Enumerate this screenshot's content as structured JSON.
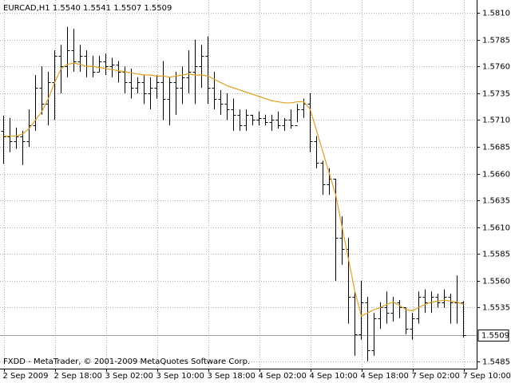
{
  "chart_data": {
    "type": "ohlc",
    "header": "EURCAD,H1  1.5540 1.5541 1.5507 1.5509",
    "footer": "FXDD - MetaTrader, © 2001-2009 MetaQuotes Software Corp.",
    "categories": [
      "2 Sep 2009",
      null,
      null,
      null,
      null,
      null,
      null,
      null,
      "2 Sep 18:00",
      null,
      null,
      null,
      null,
      null,
      null,
      null,
      "3 Sep 02:00",
      null,
      null,
      null,
      null,
      null,
      null,
      null,
      "3 Sep 10:00",
      null,
      null,
      null,
      null,
      null,
      null,
      null,
      "3 Sep 18:00",
      null,
      null,
      null,
      null,
      null,
      null,
      null,
      "4 Sep 02:00",
      null,
      null,
      null,
      null,
      null,
      null,
      null,
      "4 Sep 10:00",
      null,
      null,
      null,
      null,
      null,
      null,
      null,
      "4 Sep 18:00",
      null,
      null,
      null,
      null,
      null,
      null,
      null,
      "7 Sep 02:00",
      null,
      null,
      null,
      null,
      null,
      null,
      null,
      "7 Sep 10:00"
    ],
    "open": [
      1.57,
      1.5695,
      1.569,
      1.5695,
      1.569,
      1.5705,
      1.574,
      1.5725,
      1.5745,
      1.577,
      1.576,
      1.5775,
      1.5765,
      1.577,
      1.576,
      1.5755,
      1.5765,
      1.576,
      1.5762,
      1.5755,
      1.5745,
      1.574,
      1.5745,
      1.5735,
      1.574,
      1.5745,
      1.573,
      1.5745,
      1.574,
      1.575,
      1.5755,
      1.576,
      1.577,
      1.574,
      1.573,
      1.5725,
      1.572,
      1.5715,
      1.5705,
      1.5715,
      1.571,
      1.5712,
      1.5708,
      1.571,
      1.5705,
      1.571,
      1.5705,
      1.572,
      1.5725,
      1.569,
      1.567,
      1.565,
      1.5655,
      1.56,
      1.559,
      1.5545,
      1.551,
      1.554,
      1.5495,
      1.5525,
      1.5535,
      1.553,
      1.554,
      1.5535,
      1.5515,
      1.5525,
      1.5545,
      1.554,
      1.5545,
      1.554,
      1.5545,
      1.554,
      1.554
    ],
    "high": [
      1.5714,
      1.5712,
      1.5703,
      1.57,
      1.572,
      1.5752,
      1.576,
      1.5755,
      1.5775,
      1.578,
      1.5797,
      1.5795,
      1.578,
      1.5775,
      1.577,
      1.577,
      1.5772,
      1.5768,
      1.5765,
      1.576,
      1.5758,
      1.575,
      1.5752,
      1.575,
      1.5752,
      1.5765,
      1.575,
      1.5755,
      1.576,
      1.5775,
      1.5785,
      1.578,
      1.5788,
      1.5755,
      1.5738,
      1.5735,
      1.573,
      1.572,
      1.572,
      1.5715,
      1.5718,
      1.5715,
      1.5715,
      1.5718,
      1.5712,
      1.572,
      1.5725,
      1.573,
      1.5735,
      1.5695,
      1.5672,
      1.5665,
      1.5655,
      1.562,
      1.56,
      1.555,
      1.556,
      1.5545,
      1.553,
      1.554,
      1.555,
      1.5545,
      1.5542,
      1.5535,
      1.553,
      1.555,
      1.5552,
      1.555,
      1.5548,
      1.5552,
      1.5548,
      1.5565,
      1.5541
    ],
    "low": [
      1.5669,
      1.568,
      1.5683,
      1.5668,
      1.5685,
      1.57,
      1.5715,
      1.5705,
      1.571,
      1.5735,
      1.575,
      1.5755,
      1.5755,
      1.575,
      1.575,
      1.5755,
      1.5752,
      1.575,
      1.5745,
      1.5735,
      1.573,
      1.5735,
      1.5725,
      1.572,
      1.573,
      1.571,
      1.5705,
      1.5715,
      1.5725,
      1.5735,
      1.5725,
      1.574,
      1.5725,
      1.572,
      1.5715,
      1.571,
      1.57,
      1.57,
      1.57,
      1.5705,
      1.5705,
      1.5705,
      1.57,
      1.5702,
      1.57,
      1.5702,
      1.5708,
      1.5712,
      1.568,
      1.5665,
      1.564,
      1.564,
      1.556,
      1.5575,
      1.552,
      1.549,
      1.5505,
      1.5485,
      1.549,
      1.5515,
      1.552,
      1.5522,
      1.5525,
      1.551,
      1.5505,
      1.552,
      1.553,
      1.553,
      1.5535,
      1.5535,
      1.552,
      1.552,
      1.5507
    ],
    "close": [
      1.5695,
      1.569,
      1.5695,
      1.569,
      1.5705,
      1.574,
      1.5725,
      1.5745,
      1.577,
      1.576,
      1.5775,
      1.5765,
      1.577,
      1.576,
      1.5755,
      1.5765,
      1.576,
      1.5762,
      1.5755,
      1.5745,
      1.574,
      1.5745,
      1.5735,
      1.574,
      1.5745,
      1.573,
      1.5745,
      1.574,
      1.575,
      1.5755,
      1.576,
      1.577,
      1.574,
      1.573,
      1.5725,
      1.572,
      1.5715,
      1.5705,
      1.5715,
      1.571,
      1.5712,
      1.5708,
      1.571,
      1.5705,
      1.571,
      1.5705,
      1.572,
      1.5725,
      1.569,
      1.567,
      1.565,
      1.5655,
      1.56,
      1.559,
      1.5545,
      1.551,
      1.554,
      1.5495,
      1.5525,
      1.5535,
      1.553,
      1.554,
      1.5535,
      1.5515,
      1.5525,
      1.5545,
      1.554,
      1.5545,
      1.554,
      1.5545,
      1.554,
      1.554,
      1.5509
    ],
    "bar_color": "#000000",
    "ma_values": [
      1.5695,
      1.5695,
      1.5695,
      1.5697,
      1.5702,
      1.571,
      1.5718,
      1.573,
      1.5745,
      1.5758,
      1.5762,
      1.5763,
      1.5762,
      1.576,
      1.576,
      1.5759,
      1.5758,
      1.5757,
      1.5756,
      1.5755,
      1.5754,
      1.5753,
      1.5752,
      1.5752,
      1.5751,
      1.5751,
      1.575,
      1.5751,
      1.5752,
      1.5753,
      1.5752,
      1.5752,
      1.5751,
      1.5748,
      1.5745,
      1.5742,
      1.574,
      1.5738,
      1.5736,
      1.5734,
      1.5732,
      1.573,
      1.5728,
      1.5727,
      1.5726,
      1.5726,
      1.5727,
      1.5727,
      1.572,
      1.57,
      1.568,
      1.566,
      1.564,
      1.561,
      1.558,
      1.555,
      1.5527,
      1.553,
      1.5533,
      1.5535,
      1.5538,
      1.554,
      1.5537,
      1.5533,
      1.5532,
      1.5535,
      1.5538,
      1.554,
      1.5541,
      1.5542,
      1.5541,
      1.554,
      1.5538
    ],
    "ma_color": "#e0a020",
    "last_price": 1.5509,
    "ylim": [
      1.5478,
      1.5822
    ],
    "yticks": [
      {
        "value": 1.581,
        "label": "1.5810"
      },
      1.5785,
      {
        "value": 1.576,
        "label": "1.5760"
      },
      1.5735,
      {
        "value": 1.571,
        "label": "1.5710"
      },
      1.5685,
      {
        "value": 1.566,
        "label": "1.5660"
      },
      1.5635,
      {
        "value": 1.561,
        "label": "1.5610"
      },
      1.5585,
      {
        "value": 1.556,
        "label": "1.5560"
      },
      1.5535,
      1.5485
    ],
    "grid": true
  }
}
